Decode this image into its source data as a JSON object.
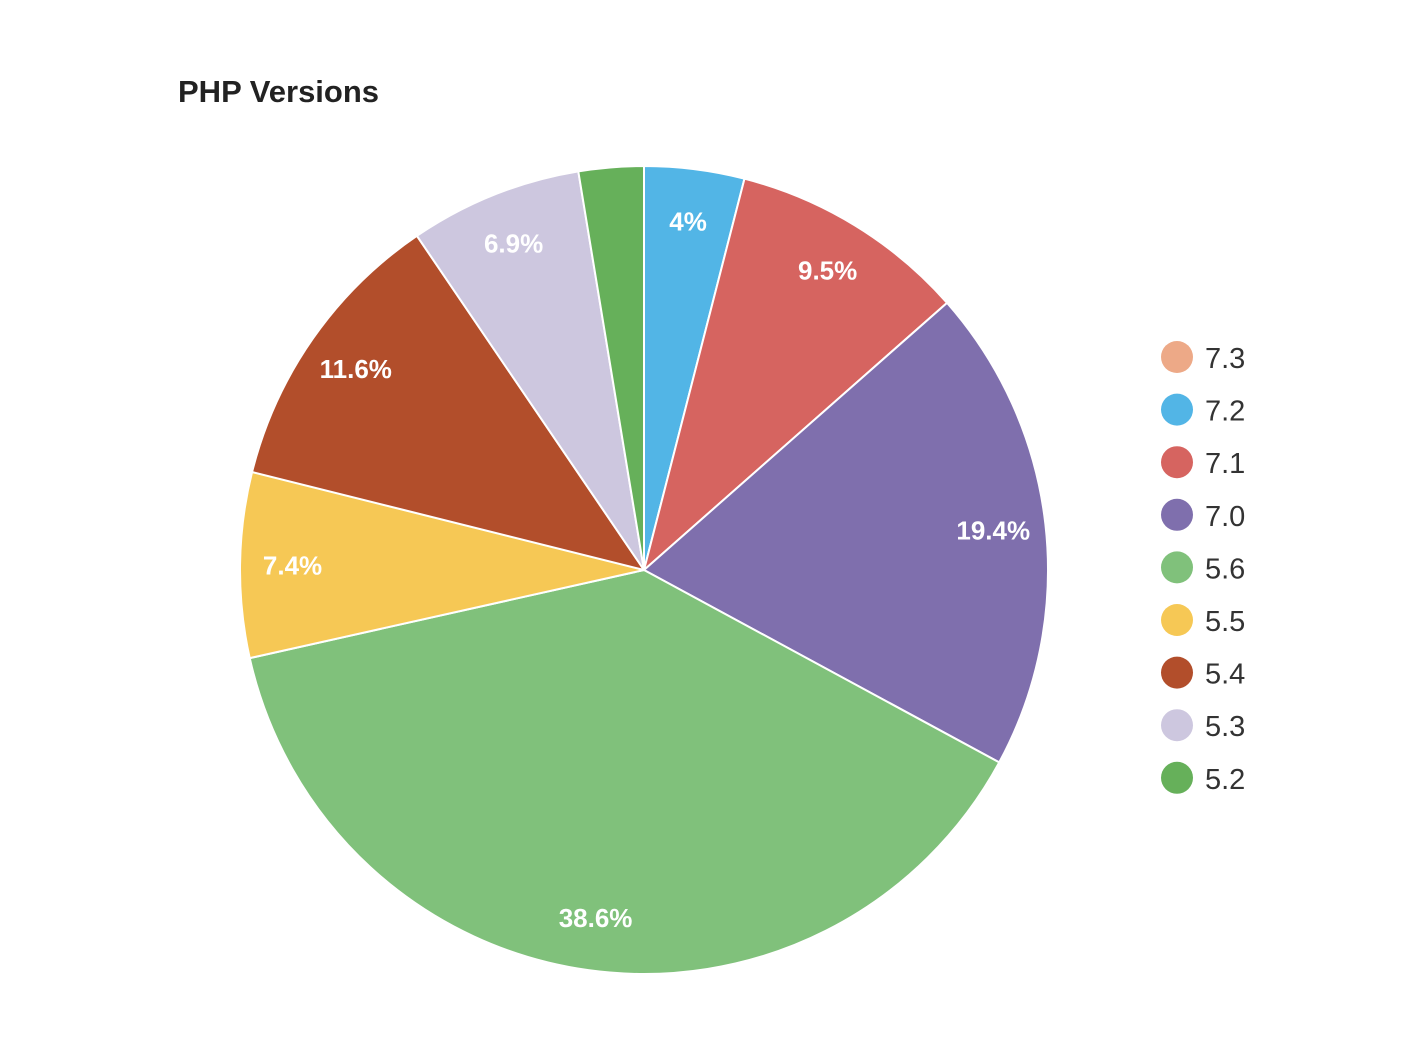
{
  "chart_data": {
    "type": "pie",
    "title": "PHP Versions",
    "legend_position": "right",
    "slices": [
      {
        "label": "7.3",
        "value": 0,
        "color": "#eda987",
        "data_label": ""
      },
      {
        "label": "7.2",
        "value": 4.0,
        "color": "#52b5e6",
        "data_label": "4%"
      },
      {
        "label": "7.1",
        "value": 9.5,
        "color": "#d66460",
        "data_label": "9.5%"
      },
      {
        "label": "7.0",
        "value": 19.4,
        "color": "#7f6fad",
        "data_label": "19.4%"
      },
      {
        "label": "5.6",
        "value": 38.6,
        "color": "#80c17b",
        "data_label": "38.6%"
      },
      {
        "label": "5.5",
        "value": 7.4,
        "color": "#f6c855",
        "data_label": "7.4%"
      },
      {
        "label": "5.4",
        "value": 11.6,
        "color": "#b24e2b",
        "data_label": "11.6%"
      },
      {
        "label": "5.3",
        "value": 6.9,
        "color": "#cdc7df",
        "data_label": "6.9%"
      },
      {
        "label": "5.2",
        "value": 2.6,
        "color": "#66b05a",
        "data_label": ""
      }
    ]
  }
}
